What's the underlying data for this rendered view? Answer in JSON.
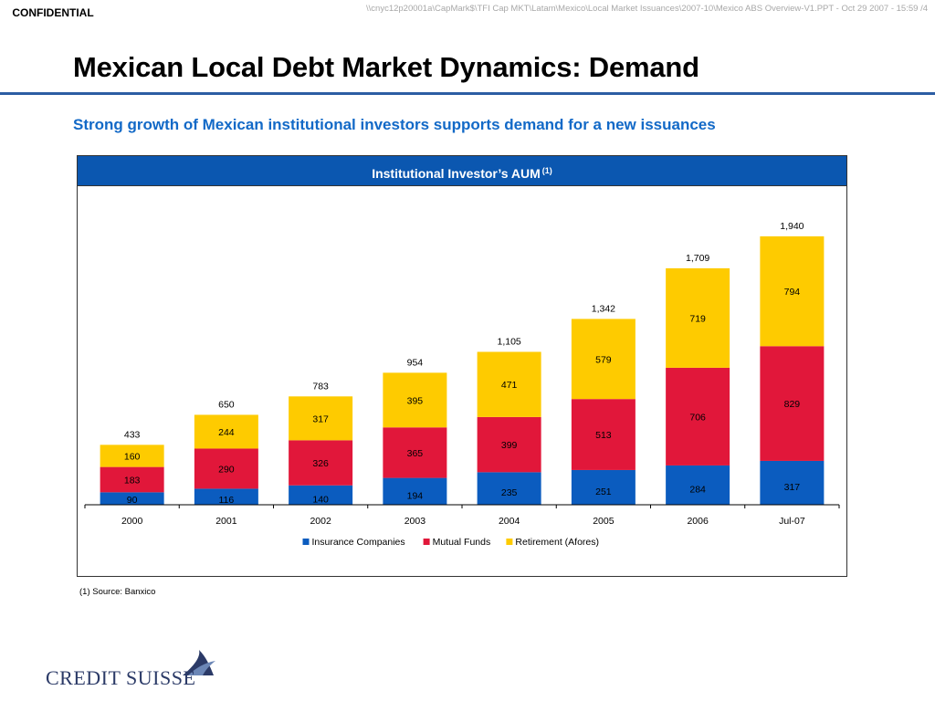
{
  "header": {
    "confidential": "CONFIDENTIAL",
    "file_path": "\\\\cnyc12p20001a\\CapMark$\\TFI Cap MKT\\Latam\\Mexico\\Local Market Issuances\\2007-10\\Mexico ABS Overview-V1.PPT - Oct 29 2007 - 15:59 /4"
  },
  "slide": {
    "title": "Mexican Local Debt Market Dynamics: Demand",
    "subtitle": "Strong growth of Mexican institutional investors supports demand for a new issuances",
    "footnote": "(1) Source: Banxico"
  },
  "chart_panel": {
    "header_title": "Institutional Investor’s AUM",
    "header_sup": "(1)"
  },
  "logo": {
    "text": "CREDIT SUISSE"
  },
  "colors": {
    "title_rule": "#2c5da3",
    "subtitle": "#1269c7",
    "panel_header": "#0b57b0",
    "insurance": "#0b5cbf",
    "mutual": "#e1173a",
    "retirement": "#fecb00"
  },
  "chart_data": {
    "type": "bar",
    "stacked": true,
    "title": "Institutional Investor’s AUM",
    "categories": [
      "2000",
      "2001",
      "2002",
      "2003",
      "2004",
      "2005",
      "2006",
      "Jul-07"
    ],
    "series": [
      {
        "name": "Insurance Companies",
        "color": "#0b5cbf",
        "values": [
          90,
          116,
          140,
          194,
          235,
          251,
          284,
          317
        ]
      },
      {
        "name": "Mutual Funds",
        "color": "#e1173a",
        "values": [
          183,
          290,
          326,
          365,
          399,
          513,
          706,
          829
        ]
      },
      {
        "name": "Retirement (Afores)",
        "color": "#fecb00",
        "values": [
          160,
          244,
          317,
          395,
          471,
          579,
          719,
          794
        ]
      }
    ],
    "totals": [
      433,
      650,
      783,
      954,
      1105,
      1342,
      1709,
      1940
    ],
    "total_labels": [
      "433",
      "650",
      "783",
      "954",
      "1,105",
      "1,342",
      "1,709",
      "1,940"
    ],
    "ylim": [
      0,
      2200
    ],
    "legend_position": "bottom",
    "grid": false
  }
}
